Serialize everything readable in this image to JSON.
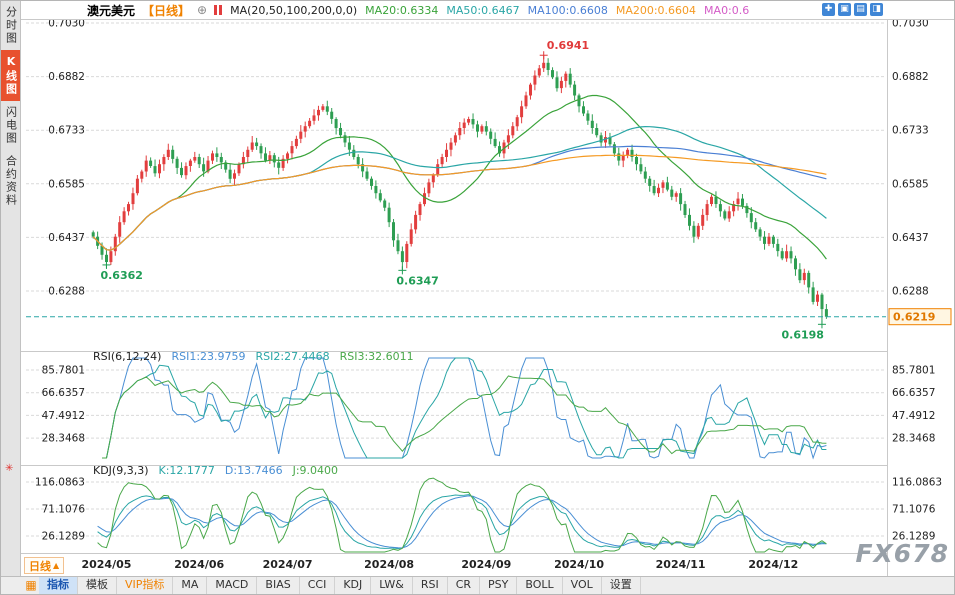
{
  "header": {
    "symbol": "澳元美元",
    "period": "【日线】",
    "items": [
      {
        "label": "MA(20,50,100,200,0,0)",
        "color": "#222222"
      },
      {
        "label": "MA20:0.6334",
        "color": "#3aa33a"
      },
      {
        "label": "MA50:0.6467",
        "color": "#2aa6a6"
      },
      {
        "label": "MA100:0.6608",
        "color": "#4a7fd4"
      },
      {
        "label": "MA200:0.6604",
        "color": "#f59a23"
      },
      {
        "label": "MA0:0.6",
        "color": "#d45cc7"
      }
    ],
    "window_icons": [
      {
        "label": "✚"
      },
      {
        "label": "▣"
      },
      {
        "label": "▤"
      },
      {
        "label": "◨"
      }
    ]
  },
  "icons": {
    "plus": "⊕",
    "kdj_settings": "✳",
    "toolbar": "▦"
  },
  "sidebar": {
    "items": [
      {
        "label": "分时图"
      },
      {
        "label": "K线图",
        "class": "active"
      },
      {
        "label": "闪电图"
      },
      {
        "label": "合约资料"
      }
    ]
  },
  "rsi_header": {
    "items": [
      {
        "label": "RSI(6,12,24)",
        "color": "#222222"
      },
      {
        "label": "RSI1:23.9759",
        "color": "#4a8fd4"
      },
      {
        "label": "RSI2:27.4468",
        "color": "#2aa6a6"
      },
      {
        "label": "RSI3:32.6011",
        "color": "#4aa84a"
      }
    ]
  },
  "kdj_header": {
    "items": [
      {
        "label": "KDJ(9,3,3)",
        "color": "#222222"
      },
      {
        "label": "K:12.1777",
        "color": "#2aa6a6"
      },
      {
        "label": "D:13.7466",
        "color": "#4a8fd4"
      },
      {
        "label": "J:9.0400",
        "color": "#4aa84a"
      }
    ]
  },
  "footer": {
    "period_label": "日线",
    "period_arrow": "▲"
  },
  "toolbar": {
    "tabs": [
      {
        "label": "指标",
        "class": "active"
      },
      {
        "label": "模板"
      },
      {
        "label": "VIP指标",
        "class": "vip"
      },
      {
        "label": "MA"
      },
      {
        "label": "MACD"
      },
      {
        "label": "BIAS"
      },
      {
        "label": "CCI"
      },
      {
        "label": "KDJ"
      },
      {
        "label": "LW&"
      },
      {
        "label": "RSI"
      },
      {
        "label": "CR"
      },
      {
        "label": "PSY"
      },
      {
        "label": "BOLL"
      },
      {
        "label": "VOL"
      },
      {
        "label": "设置"
      }
    ]
  },
  "watermark": "FX678",
  "chart_data": {
    "type": "candlestick",
    "title": "澳元美元 日线",
    "price_axis_ticks": [
      0.703,
      0.6882,
      0.6733,
      0.6585,
      0.6437,
      0.6288
    ],
    "current_price": 0.6219,
    "colors": {
      "up": "#e23e3e",
      "down": "#2e9e52"
    },
    "x_labels": [
      {
        "label": "2024/05",
        "idx": 3
      },
      {
        "label": "2024/06",
        "idx": 24
      },
      {
        "label": "2024/07",
        "idx": 44
      },
      {
        "label": "2024/08",
        "idx": 67
      },
      {
        "label": "2024/09",
        "idx": 89
      },
      {
        "label": "2024/10",
        "idx": 110
      },
      {
        "label": "2024/11",
        "idx": 133
      },
      {
        "label": "2024/12",
        "idx": 154
      }
    ],
    "closes": [
      0.644,
      0.6415,
      0.639,
      0.637,
      0.64,
      0.644,
      0.648,
      0.651,
      0.653,
      0.656,
      0.66,
      0.662,
      0.665,
      0.6635,
      0.6615,
      0.664,
      0.666,
      0.668,
      0.6655,
      0.663,
      0.661,
      0.6635,
      0.665,
      0.666,
      0.664,
      0.662,
      0.665,
      0.667,
      0.666,
      0.6645,
      0.6625,
      0.66,
      0.6615,
      0.664,
      0.666,
      0.668,
      0.67,
      0.669,
      0.667,
      0.665,
      0.6665,
      0.6645,
      0.663,
      0.6655,
      0.667,
      0.669,
      0.671,
      0.673,
      0.6745,
      0.676,
      0.6775,
      0.679,
      0.68,
      0.6785,
      0.6765,
      0.674,
      0.672,
      0.67,
      0.668,
      0.666,
      0.664,
      0.662,
      0.66,
      0.658,
      0.656,
      0.654,
      0.652,
      0.648,
      0.643,
      0.64,
      0.637,
      0.642,
      0.646,
      0.65,
      0.653,
      0.656,
      0.659,
      0.661,
      0.664,
      0.666,
      0.668,
      0.67,
      0.672,
      0.674,
      0.6755,
      0.6765,
      0.675,
      0.673,
      0.6745,
      0.673,
      0.671,
      0.669,
      0.667,
      0.67,
      0.672,
      0.6745,
      0.677,
      0.68,
      0.683,
      0.686,
      0.6885,
      0.6905,
      0.692,
      0.69,
      0.688,
      0.685,
      0.687,
      0.689,
      0.686,
      0.683,
      0.68,
      0.678,
      0.676,
      0.674,
      0.672,
      0.67,
      0.6715,
      0.6695,
      0.667,
      0.665,
      0.6665,
      0.668,
      0.666,
      0.664,
      0.662,
      0.66,
      0.658,
      0.656,
      0.6575,
      0.659,
      0.657,
      0.655,
      0.656,
      0.653,
      0.65,
      0.647,
      0.644,
      0.647,
      0.65,
      0.653,
      0.655,
      0.653,
      0.651,
      0.649,
      0.651,
      0.653,
      0.6545,
      0.6525,
      0.6505,
      0.648,
      0.646,
      0.644,
      0.642,
      0.644,
      0.642,
      0.64,
      0.638,
      0.64,
      0.638,
      0.635,
      0.632,
      0.634,
      0.63,
      0.626,
      0.628,
      0.624,
      0.6219
    ],
    "key_points": [
      {
        "label": "0.6362",
        "idx": 3,
        "price": 0.6362,
        "type": "low",
        "color": "#1f9d55"
      },
      {
        "label": "0.6347",
        "idx": 70,
        "price": 0.6347,
        "type": "low",
        "color": "#1f9d55"
      },
      {
        "label": "0.6941",
        "idx": 102,
        "price": 0.6941,
        "type": "high",
        "color": "#e03a3a"
      },
      {
        "label": "0.6198",
        "idx": 165,
        "price": 0.6198,
        "type": "low",
        "color": "#1f9d55",
        "align": "end"
      }
    ],
    "ma_lines": [
      {
        "label": "MA20",
        "period": 20,
        "color": "#3aa33a"
      },
      {
        "label": "MA50",
        "period": 50,
        "color": "#2aa6a6"
      },
      {
        "label": "MA100",
        "period": 100,
        "color": "#4a7fd4"
      },
      {
        "label": "MA200",
        "period": 200,
        "color": "#f59a23"
      }
    ],
    "rsi": {
      "axis_ticks": [
        85.7801,
        66.6357,
        47.4912,
        28.3468
      ],
      "lines": [
        {
          "label": "RSI1",
          "period": 6,
          "color": "#4a8fd4"
        },
        {
          "label": "RSI2",
          "period": 12,
          "color": "#2aa6a6"
        },
        {
          "label": "RSI3",
          "period": 24,
          "color": "#4aa84a"
        }
      ]
    },
    "kdj": {
      "axis_ticks": [
        116.0863,
        71.1076,
        26.1289
      ],
      "lines": [
        {
          "name": "K",
          "color": "#2aa6a6"
        },
        {
          "name": "D",
          "color": "#4a8fd4"
        },
        {
          "name": "J",
          "color": "#4aa84a"
        }
      ]
    }
  }
}
